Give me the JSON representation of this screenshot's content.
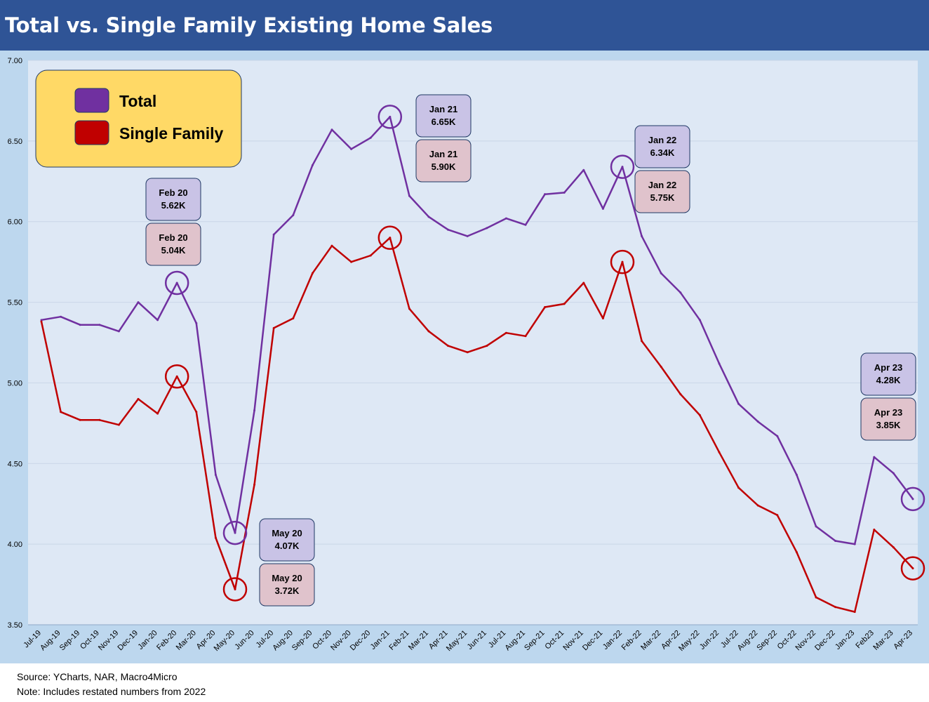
{
  "title": "Total vs. Single Family Existing Home Sales",
  "footer": {
    "source": "Source: YCharts, NAR, Macro4Micro",
    "note": "Note: Includes restated numbers from 2022"
  },
  "colors": {
    "header_bg": "#2f5496",
    "frame_bg": "#bdd7ee",
    "plot_bg": "#dee8f5",
    "total": "#7030a0",
    "single_family": "#c00000",
    "legend_bg": "#ffd966",
    "callout_total_bg": "#c9c3e6",
    "callout_sf_bg": "#e0c3cc",
    "callout_border": "#1f3864"
  },
  "chart_data": {
    "type": "line",
    "title": "Total vs. Single Family Existing Home Sales",
    "xlabel": "",
    "ylabel": "",
    "ylim": [
      3.5,
      7.0
    ],
    "yticks": [
      "3.50",
      "4.00",
      "4.50",
      "5.00",
      "5.50",
      "6.00",
      "6.50",
      "7.00"
    ],
    "grid": true,
    "legend_position": "top-left",
    "categories": [
      "Jul-19",
      "Aug-19",
      "Sep-19",
      "Oct-19",
      "Nov-19",
      "Dec-19",
      "Jan-20",
      "Feb-20",
      "Mar-20",
      "Apr-20",
      "May-20",
      "Jun-20",
      "Jul-20",
      "Aug-20",
      "Sep-20",
      "Oct-20",
      "Nov-20",
      "Dec-20",
      "Jan-21",
      "Feb-21",
      "Mar-21",
      "Apr-21",
      "May-21",
      "Jun-21",
      "Jul-21",
      "Aug-21",
      "Sep-21",
      "Oct-21",
      "Nov-21",
      "Dec-21",
      "Jan-22",
      "Feb-22",
      "Mar-22",
      "Apr-22",
      "May-22",
      "Jun-22",
      "Jul-22",
      "Aug-22",
      "Sep-22",
      "Oct-22",
      "Nov-22",
      "Dec-22",
      "Jan-23",
      "Feb23",
      "Mar-23",
      "Apr-23"
    ],
    "series": [
      {
        "name": "Total",
        "color": "#7030a0",
        "values": [
          5.39,
          5.41,
          5.36,
          5.36,
          5.32,
          5.5,
          5.39,
          5.62,
          5.37,
          4.43,
          4.07,
          4.83,
          5.92,
          6.04,
          6.35,
          6.57,
          6.45,
          6.52,
          6.65,
          6.16,
          6.03,
          5.95,
          5.91,
          5.96,
          6.02,
          5.98,
          6.17,
          6.18,
          6.32,
          6.08,
          6.34,
          5.91,
          5.68,
          5.56,
          5.39,
          5.12,
          4.87,
          4.76,
          4.67,
          4.43,
          4.11,
          4.02,
          4.0,
          4.54,
          4.44,
          4.28
        ]
      },
      {
        "name": "Single Family",
        "color": "#c00000",
        "values": [
          5.38,
          4.82,
          4.77,
          4.77,
          4.74,
          4.9,
          4.81,
          5.04,
          4.82,
          4.04,
          3.72,
          4.37,
          5.34,
          5.4,
          5.68,
          5.85,
          5.75,
          5.79,
          5.9,
          5.46,
          5.32,
          5.23,
          5.19,
          5.23,
          5.31,
          5.29,
          5.47,
          5.49,
          5.62,
          5.4,
          5.75,
          5.26,
          5.1,
          4.93,
          4.8,
          4.57,
          4.35,
          4.24,
          4.18,
          3.95,
          3.67,
          3.61,
          3.58,
          4.09,
          3.98,
          3.85
        ]
      }
    ],
    "legend": [
      {
        "label": "Total",
        "color": "#7030a0"
      },
      {
        "label": "Single Family",
        "color": "#c00000"
      }
    ],
    "annotations": [
      {
        "index": 7,
        "total_label": [
          "Feb 20",
          "5.62K"
        ],
        "sf_label": [
          "Feb 20",
          "5.04K"
        ]
      },
      {
        "index": 10,
        "total_label": [
          "May 20",
          "4.07K"
        ],
        "sf_label": [
          "May 20",
          "3.72K"
        ]
      },
      {
        "index": 18,
        "total_label": [
          "Jan 21",
          "6.65K"
        ],
        "sf_label": [
          "Jan 21",
          "5.90K"
        ]
      },
      {
        "index": 30,
        "total_label": [
          "Jan 22",
          "6.34K"
        ],
        "sf_label": [
          "Jan 22",
          "5.75K"
        ]
      },
      {
        "index": 45,
        "total_label": [
          "Apr 23",
          "4.28K"
        ],
        "sf_label": [
          "Apr 23",
          "3.85K"
        ]
      }
    ]
  }
}
